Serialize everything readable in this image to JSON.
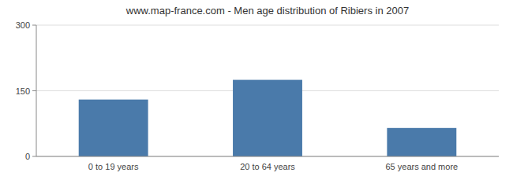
{
  "chart_data": {
    "type": "bar",
    "title": "www.map-france.com - Men age distribution of Ribiers in 2007",
    "categories": [
      "0 to 19 years",
      "20 to 64 years",
      "65 years and more"
    ],
    "values": [
      130,
      175,
      65
    ],
    "color": "#4a7aaa",
    "ylim": [
      0,
      300
    ],
    "yticks": [
      0,
      150,
      300
    ],
    "grid": true
  }
}
